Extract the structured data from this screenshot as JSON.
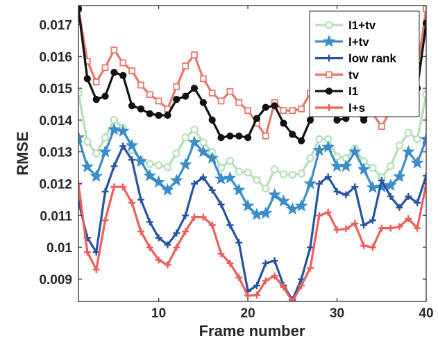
{
  "chart_data": {
    "type": "line",
    "title": "",
    "xlabel": "Frame number",
    "ylabel": "RMSE",
    "xlim": [
      1,
      40
    ],
    "ylim": [
      0.0083,
      0.0176
    ],
    "xticks": [
      10,
      20,
      30,
      40
    ],
    "xtick_labels": [
      "10",
      "20",
      "30",
      "40"
    ],
    "yticks": [
      0.009,
      0.01,
      0.011,
      0.012,
      0.013,
      0.014,
      0.015,
      0.016,
      0.017
    ],
    "ytick_labels": [
      "0.009",
      "0.01",
      "0.011",
      "0.012",
      "0.013",
      "0.014",
      "0.015",
      "0.016",
      "0.017"
    ],
    "grid": false,
    "legend_position": "top-right",
    "x": [
      1,
      2,
      3,
      4,
      5,
      6,
      7,
      8,
      9,
      10,
      11,
      12,
      13,
      14,
      15,
      16,
      17,
      18,
      19,
      20,
      21,
      22,
      23,
      24,
      25,
      26,
      27,
      28,
      29,
      30,
      31,
      32,
      33,
      34,
      35,
      36,
      37,
      38,
      39,
      40
    ],
    "series": [
      {
        "name": "l1+tv",
        "color": "#b3dfb8",
        "marker": "circle-open",
        "values": [
          0.01485,
          0.01332,
          0.01295,
          0.01345,
          0.014,
          0.01376,
          0.01306,
          0.01275,
          0.01262,
          0.01258,
          0.01252,
          0.01295,
          0.01345,
          0.0137,
          0.0133,
          0.013,
          0.0125,
          0.01272,
          0.01238,
          0.01235,
          0.01212,
          0.01185,
          0.01245,
          0.0123,
          0.01228,
          0.01232,
          0.0128,
          0.0134,
          0.0134,
          0.01285,
          0.0128,
          0.0131,
          0.0127,
          0.0125,
          0.0122,
          0.01255,
          0.0132,
          0.0136,
          0.0134,
          0.0148
        ]
      },
      {
        "name": "l+tv",
        "color": "#3a8dc8",
        "marker": "star",
        "values": [
          0.01345,
          0.01253,
          0.01223,
          0.013,
          0.0137,
          0.01365,
          0.0132,
          0.0127,
          0.01225,
          0.01205,
          0.0118,
          0.0121,
          0.0126,
          0.0133,
          0.013,
          0.0128,
          0.01215,
          0.01218,
          0.0118,
          0.0113,
          0.01103,
          0.01107,
          0.01165,
          0.01145,
          0.0112,
          0.0113,
          0.012,
          0.01305,
          0.01315,
          0.01255,
          0.01255,
          0.013,
          0.01245,
          0.01188,
          0.0119,
          0.01195,
          0.01222,
          0.013,
          0.01265,
          0.0134
        ]
      },
      {
        "name": "low rank",
        "color": "#2453a0",
        "marker": "plus",
        "values": [
          0.01145,
          0.0103,
          0.00985,
          0.01175,
          0.01255,
          0.01318,
          0.01275,
          0.0115,
          0.0108,
          0.0103,
          0.01008,
          0.01045,
          0.011,
          0.012,
          0.0122,
          0.0118,
          0.01135,
          0.0107,
          0.01015,
          0.00862,
          0.0088,
          0.0095,
          0.00958,
          0.0088,
          0.00835,
          0.009,
          0.01,
          0.012,
          0.01222,
          0.01175,
          0.01165,
          0.0119,
          0.0107,
          0.01085,
          0.0121,
          0.0116,
          0.01125,
          0.0116,
          0.0114,
          0.01225
        ]
      },
      {
        "name": "tv",
        "color": "#e8766a",
        "marker": "square-open",
        "values": [
          0.0175,
          0.01585,
          0.0152,
          0.01565,
          0.0162,
          0.0158,
          0.01555,
          0.0151,
          0.0148,
          0.0146,
          0.01435,
          0.01505,
          0.0157,
          0.01605,
          0.0153,
          0.01485,
          0.0146,
          0.0149,
          0.01455,
          0.0143,
          0.0139,
          0.0135,
          0.01455,
          0.0143,
          0.0143,
          0.01435,
          0.01485,
          0.01495,
          0.0143,
          0.0144,
          0.0148,
          0.0152,
          0.0144,
          0.0142,
          0.0138,
          0.0143,
          0.0145,
          0.0144,
          0.0156,
          0.0175
        ]
      },
      {
        "name": "l1",
        "color": "#111111",
        "marker": "circle-filled",
        "values": [
          0.0175,
          0.0153,
          0.01465,
          0.01475,
          0.0155,
          0.0154,
          0.01445,
          0.01435,
          0.0142,
          0.01415,
          0.01415,
          0.01465,
          0.01475,
          0.015,
          0.01455,
          0.014,
          0.01345,
          0.0135,
          0.0135,
          0.01345,
          0.01405,
          0.0144,
          0.01445,
          0.0139,
          0.01355,
          0.01335,
          0.014,
          0.0144,
          0.01445,
          0.014,
          0.01405,
          0.0143,
          0.014,
          0.0143,
          0.0146,
          0.0147,
          0.0148,
          0.0146,
          0.015,
          0.01705
        ]
      },
      {
        "name": "l+s",
        "color": "#ee5e5a",
        "marker": "plus",
        "values": [
          0.012,
          0.00985,
          0.0093,
          0.01085,
          0.0119,
          0.0119,
          0.0114,
          0.0105,
          0.01,
          0.0096,
          0.00945,
          0.01,
          0.0105,
          0.01095,
          0.01095,
          0.0107,
          0.0098,
          0.0095,
          0.00905,
          0.00848,
          0.0085,
          0.00895,
          0.0091,
          0.00875,
          0.0083,
          0.0088,
          0.00935,
          0.011,
          0.0111,
          0.01055,
          0.01058,
          0.01075,
          0.01005,
          0.01,
          0.0106,
          0.0106,
          0.01065,
          0.0109,
          0.0106,
          0.012
        ]
      }
    ]
  }
}
